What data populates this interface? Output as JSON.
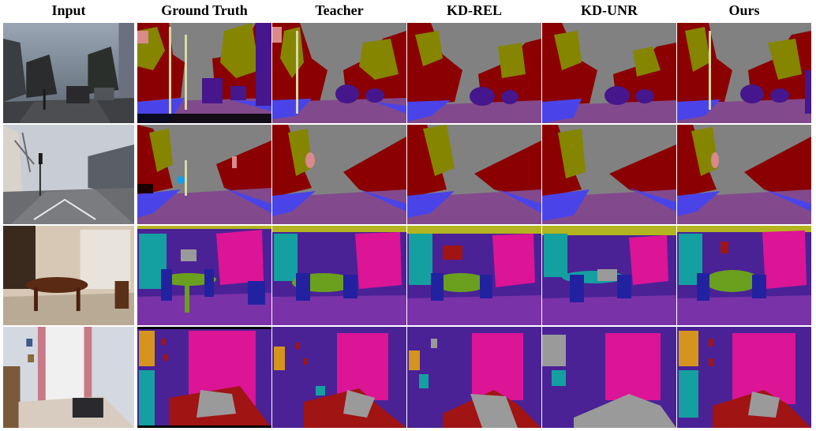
{
  "figure": {
    "columns": [
      "Input",
      "Ground Truth",
      "Teacher",
      "KD-REL",
      "KD-UNR",
      "Ours"
    ]
  },
  "palette": {
    "sky": "#818181",
    "building": "#8b0000",
    "vegetation": "#858500",
    "road": "#824a8c",
    "sidewalk": "#4a44e8",
    "pole": "#d8d8a8",
    "car": "#46168c",
    "pedestrian": "#da8a8a",
    "sign": "#d4c45a",
    "indoor_wall": "#4a2296",
    "indoor_floor": "#7a32a8",
    "indoor_picture": "#dc1496",
    "indoor_cabinet": "#14a0a0",
    "indoor_table": "#6aa01e",
    "indoor_chair": "#2222a0",
    "indoor_ceiling": "#b4b41e",
    "indoor_bed": "#a01414",
    "indoor_object": "#9a9a9a",
    "indoor_orange": "#d4941e"
  }
}
